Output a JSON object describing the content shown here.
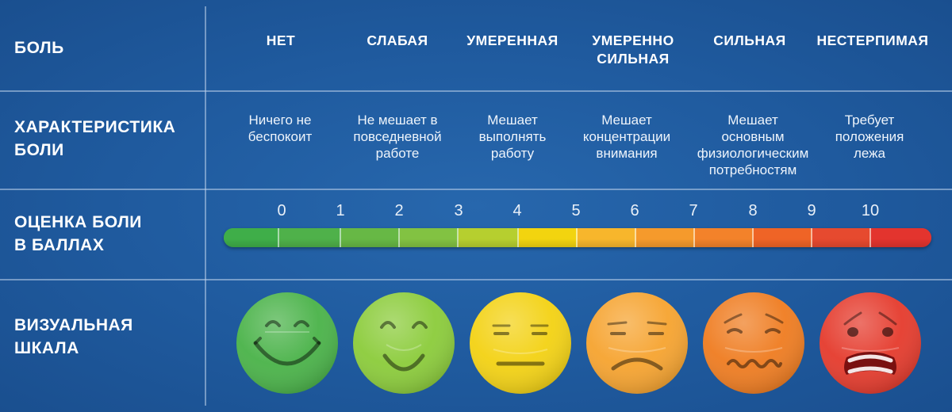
{
  "rows": {
    "pain": "БОЛЬ",
    "characteristic": "ХАРАКТЕРИСТИКА\nБОЛИ",
    "score": "ОЦЕНКА БОЛИ\nВ БАЛЛАХ",
    "visual": "ВИЗУАЛЬНАЯ\nШКАЛА"
  },
  "levels": [
    {
      "name": "НЕТ",
      "description": "Ничего не\nбеспокоит",
      "face_color": "#4bb34a",
      "face_icon": "big-smile-face-icon"
    },
    {
      "name": "СЛАБАЯ",
      "description": "Не мешает в\nповседневной\nработе",
      "face_color": "#8ccc3c",
      "face_icon": "smile-face-icon"
    },
    {
      "name": "УМЕРЕННАЯ",
      "description": "Мешает\nвыполнять\nработу",
      "face_color": "#f3d215",
      "face_icon": "neutral-face-icon"
    },
    {
      "name": "УМЕРЕННО\nСИЛЬНАЯ",
      "description": "Мешает\nконцентрации\nвнимания",
      "face_color": "#f6a431",
      "face_icon": "frown-face-icon"
    },
    {
      "name": "СИЛЬНАЯ",
      "description": "Мешает\nосновным\nфизиологическим\nпотребностям",
      "face_color": "#ef7d22",
      "face_icon": "wavy-mouth-face-icon"
    },
    {
      "name": "НЕСТЕРПИМАЯ",
      "description": "Требует\nположения\nлежа",
      "face_color": "#e53c2e",
      "face_icon": "grimace-face-icon"
    }
  ],
  "scale": {
    "numbers": [
      "0",
      "1",
      "2",
      "3",
      "4",
      "5",
      "6",
      "7",
      "8",
      "9",
      "10"
    ],
    "segment_colors": [
      "#3fae49",
      "#4fb14a",
      "#67b845",
      "#82c242",
      "#b6cf2f",
      "#f2d40f",
      "#f7b62c",
      "#f59a2c",
      "#f3822a",
      "#ef6426",
      "#e64a2f",
      "#e3342e"
    ]
  }
}
